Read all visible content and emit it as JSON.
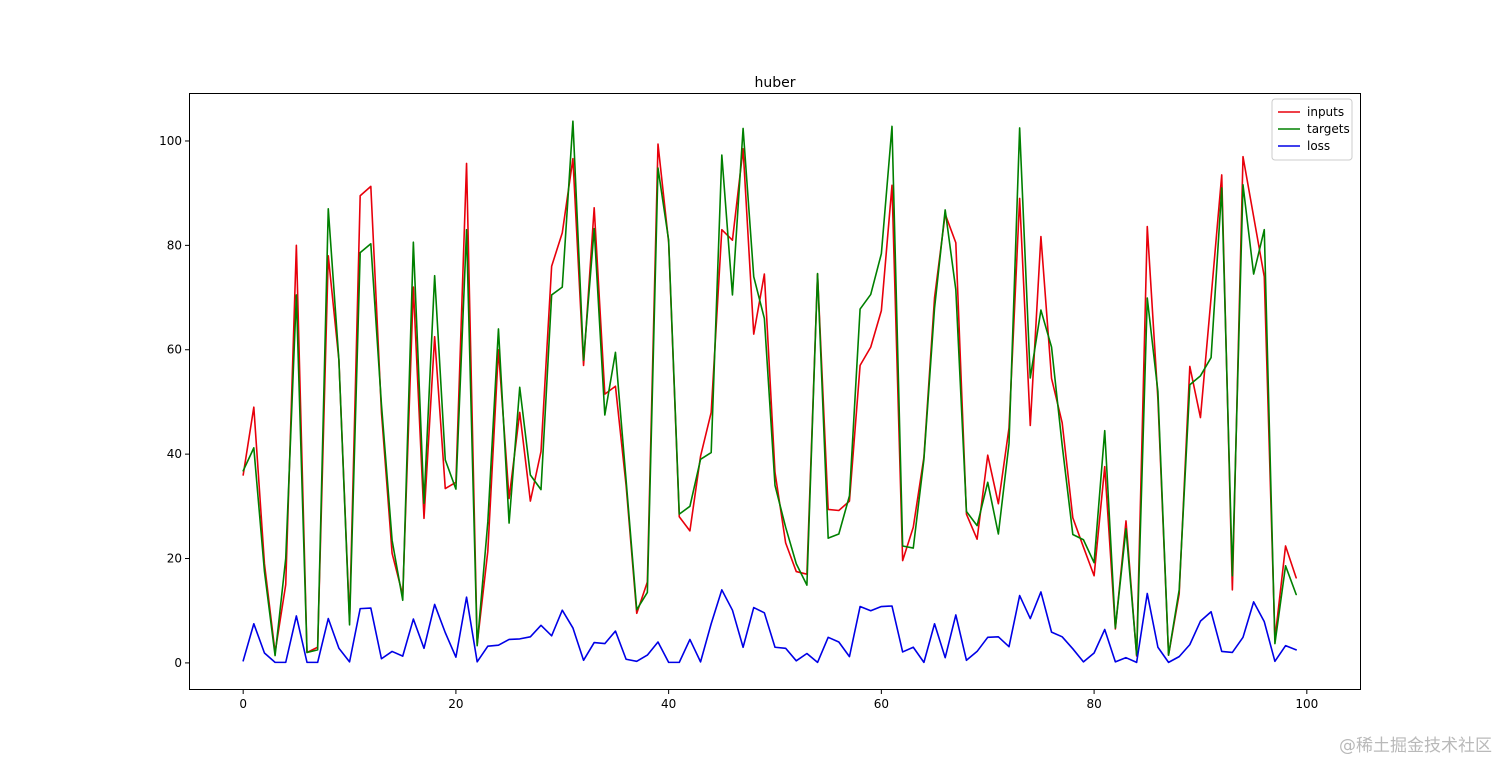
{
  "chart_data": {
    "type": "line",
    "title": "huber",
    "xlabel": "",
    "ylabel": "",
    "xlim": [
      -5,
      105
    ],
    "ylim": [
      -5,
      109
    ],
    "xticks": [
      0,
      20,
      40,
      60,
      80,
      100
    ],
    "yticks": [
      0,
      20,
      40,
      60,
      80,
      100
    ],
    "grid": false,
    "legend": "top-right",
    "series": [
      {
        "name": "inputs",
        "color": "#e8000b",
        "values": [
          36,
          49,
          19,
          2,
          15,
          80,
          2,
          3,
          78,
          58,
          8,
          89.5,
          91.3,
          48,
          21,
          13,
          72,
          27.7,
          62.5,
          33.4,
          34.6,
          95.7,
          3.6,
          21.4,
          60,
          31.5,
          48,
          31,
          40.5,
          76,
          82.4,
          96.6,
          57,
          87.2,
          51.5,
          53,
          34,
          9.5,
          15.5,
          99.4,
          80.6,
          28,
          25.3,
          39.6,
          48,
          83,
          81,
          98.5,
          63,
          74.5,
          36.5,
          23,
          17.5,
          17,
          74.5,
          29.4,
          29.2,
          31,
          57,
          60.5,
          67.5,
          91.5,
          19.6,
          26,
          39.4,
          70,
          86,
          80.5,
          28.5,
          23.7,
          39.8,
          30.5,
          45,
          89,
          45.5,
          81.7,
          54.5,
          46,
          27.8,
          22.2,
          16.7,
          37.6,
          6.5,
          27.2,
          1.3,
          83.6,
          50.5,
          1.5,
          13.2,
          56.8,
          47,
          70,
          93.5,
          14,
          97,
          85.5,
          74,
          4.5,
          22.4,
          16.3
        ]
      },
      {
        "name": "targets",
        "color": "#008000",
        "values": [
          36.8,
          41.2,
          17.5,
          1.4,
          20,
          70.5,
          2,
          2.5,
          87,
          58,
          7.3,
          78.6,
          80.3,
          49.5,
          23.5,
          12,
          80.6,
          30.6,
          74.2,
          38.9,
          33.3,
          83,
          3.3,
          27,
          64,
          26.8,
          52.8,
          36,
          33.2,
          70.5,
          72,
          103.8,
          58,
          83.2,
          47.5,
          59.5,
          35,
          10.2,
          13.5,
          94.8,
          81,
          28.5,
          30,
          39,
          40.3,
          97.3,
          70.5,
          102.4,
          74,
          66,
          34,
          26,
          19,
          14.9,
          74.6,
          23.9,
          24.7,
          32,
          67.8,
          70.6,
          78.4,
          102.8,
          22.4,
          22,
          39,
          68,
          86.8,
          71.5,
          29,
          26.3,
          34.6,
          24.7,
          42,
          102.5,
          54.6,
          67.6,
          60.5,
          41.7,
          24.6,
          23.6,
          19.2,
          44.5,
          6.7,
          25.7,
          1.5,
          69.9,
          52,
          1.5,
          14,
          53.3,
          55,
          58.5,
          91,
          16.7,
          91.6,
          74.5,
          83,
          3.7,
          18.6,
          13.1
        ]
      },
      {
        "name": "loss",
        "color": "#0000e6",
        "values": [
          0.4,
          7.5,
          1.9,
          0.1,
          0.1,
          9,
          0.1,
          0.1,
          8.5,
          2.8,
          0.2,
          10.4,
          10.5,
          0.8,
          2.2,
          1.3,
          8.4,
          2.8,
          11.2,
          5.8,
          1.1,
          12.6,
          0.2,
          3.2,
          3.4,
          4.5,
          4.6,
          5,
          7.2,
          5.2,
          10.1,
          6.7,
          0.5,
          3.9,
          3.7,
          6.1,
          0.7,
          0.3,
          1.5,
          4,
          0.1,
          0.1,
          4.5,
          0.2,
          7.5,
          14,
          10.1,
          3,
          10.6,
          9.6,
          3,
          2.8,
          0.4,
          1.8,
          0.1,
          4.9,
          4,
          1.2,
          10.8,
          10,
          10.8,
          10.9,
          2.1,
          3,
          0.1,
          7.5,
          1,
          9.2,
          0.5,
          2.2,
          4.9,
          5,
          3.1,
          12.9,
          8.5,
          13.6,
          5.9,
          5,
          2.7,
          0.2,
          1.9,
          6.4,
          0.2,
          1,
          0.1,
          13.3,
          3,
          0.1,
          1.2,
          3.5,
          8,
          9.8,
          2.2,
          2,
          4.9,
          11.7,
          7.9,
          0.3,
          3.3,
          2.5
        ]
      }
    ]
  },
  "watermark": "@稀土掘金技术社区"
}
